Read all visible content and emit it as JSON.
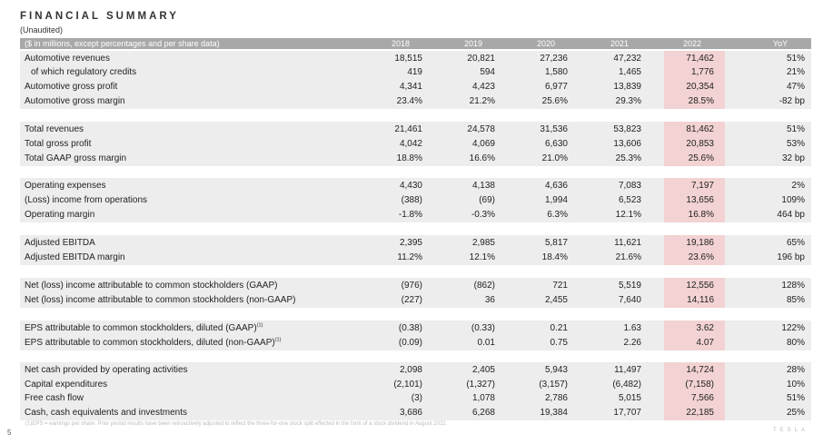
{
  "title": "FINANCIAL SUMMARY",
  "subtitle": "(Unaudited)",
  "header": {
    "description": "($ in millions, except percentages and per share data)",
    "years": [
      "2018",
      "2019",
      "2020",
      "2021",
      "2022"
    ],
    "yoy": "YoY"
  },
  "accent_color": "#f2d2d2",
  "rows": [
    {
      "label": "Automotive revenues",
      "values": [
        "18,515",
        "20,821",
        "27,236",
        "47,232",
        "71,462"
      ],
      "yoy": "51%"
    },
    {
      "label": "of which regulatory credits",
      "indent": true,
      "values": [
        "419",
        "594",
        "1,580",
        "1,465",
        "1,776"
      ],
      "yoy": "21%"
    },
    {
      "label": "Automotive gross profit",
      "values": [
        "4,341",
        "4,423",
        "6,977",
        "13,839",
        "20,354"
      ],
      "yoy": "47%"
    },
    {
      "label": "Automotive gross margin",
      "values": [
        "23.4%",
        "21.2%",
        "25.6%",
        "29.3%",
        "28.5%"
      ],
      "yoy": "-82 bp"
    },
    {
      "label": "Total revenues",
      "values": [
        "21,461",
        "24,578",
        "31,536",
        "53,823",
        "81,462"
      ],
      "yoy": "51%"
    },
    {
      "label": "Total gross profit",
      "values": [
        "4,042",
        "4,069",
        "6,630",
        "13,606",
        "20,853"
      ],
      "yoy": "53%"
    },
    {
      "label": "Total GAAP gross margin",
      "values": [
        "18.8%",
        "16.6%",
        "21.0%",
        "25.3%",
        "25.6%"
      ],
      "yoy": "32 bp"
    },
    {
      "label": "Operating expenses",
      "values": [
        "4,430",
        "4,138",
        "4,636",
        "7,083",
        "7,197"
      ],
      "yoy": "2%"
    },
    {
      "label": "(Loss) income from operations",
      "values": [
        "(388)",
        "(69)",
        "1,994",
        "6,523",
        "13,656"
      ],
      "yoy": "109%"
    },
    {
      "label": "Operating margin",
      "values": [
        "-1.8%",
        "-0.3%",
        "6.3%",
        "12.1%",
        "16.8%"
      ],
      "yoy": "464 bp"
    },
    {
      "label": "Adjusted EBITDA",
      "values": [
        "2,395",
        "2,985",
        "5,817",
        "11,621",
        "19,186"
      ],
      "yoy": "65%"
    },
    {
      "label": "Adjusted EBITDA margin",
      "values": [
        "11.2%",
        "12.1%",
        "18.4%",
        "21.6%",
        "23.6%"
      ],
      "yoy": "196 bp"
    },
    {
      "label": "Net (loss) income attributable to common stockholders (GAAP)",
      "values": [
        "(976)",
        "(862)",
        "721",
        "5,519",
        "12,556"
      ],
      "yoy": "128%"
    },
    {
      "label": "Net (loss) income attributable to common stockholders (non-GAAP)",
      "values": [
        "(227)",
        "36",
        "2,455",
        "7,640",
        "14,116"
      ],
      "yoy": "85%"
    },
    {
      "label": "EPS attributable to common stockholders, diluted (GAAP)",
      "note": "(1)",
      "values": [
        "(0.38)",
        "(0.33)",
        "0.21",
        "1.63",
        "3.62"
      ],
      "yoy": "122%"
    },
    {
      "label": "EPS attributable to common stockholders, diluted (non-GAAP)",
      "note": "(1)",
      "values": [
        "(0.09)",
        "0.01",
        "0.75",
        "2.26",
        "4.07"
      ],
      "yoy": "80%"
    },
    {
      "label": "Net cash provided by operating activities",
      "values": [
        "2,098",
        "2,405",
        "5,943",
        "11,497",
        "14,724"
      ],
      "yoy": "28%"
    },
    {
      "label": "Capital expenditures",
      "values": [
        "(2,101)",
        "(1,327)",
        "(3,157)",
        "(6,482)",
        "(7,158)"
      ],
      "yoy": "10%"
    },
    {
      "label": "Free cash flow",
      "values": [
        "(3)",
        "1,078",
        "2,786",
        "5,015",
        "7,566"
      ],
      "yoy": "51%"
    },
    {
      "label": "Cash, cash equivalents and investments",
      "values": [
        "3,686",
        "6,268",
        "19,384",
        "17,707",
        "22,185"
      ],
      "yoy": "25%"
    }
  ],
  "footnote": "(1)EPS = earnings per share. Prior period results have been retroactively adjusted to reflect the three-for-one stock split effected in the form of a stock dividend in August 2022.",
  "page_number": "5",
  "brand": "TESLA"
}
